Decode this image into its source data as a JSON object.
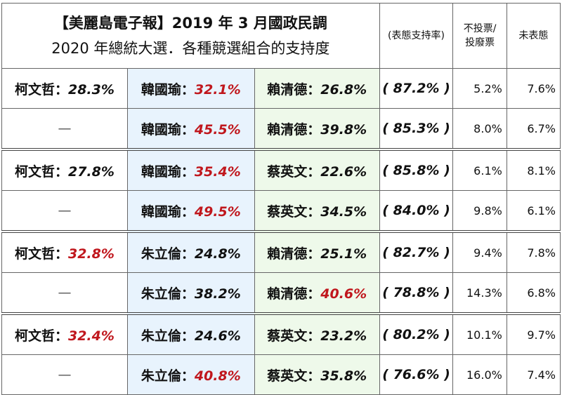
{
  "header": {
    "title_line1": "【美麗島電子報】2019 年 3 月國政民調",
    "title_line2": "2020 年總統大選．各種競選組合的支持度",
    "col_support": "(表態支持率)",
    "col_novote": "不投票/\n投廢票",
    "col_undecided": "未表態"
  },
  "colors": {
    "highlight": "#c0171d",
    "blue_column": "#e8f3fd",
    "green_column": "#eef9ea"
  },
  "rows": [
    {
      "c1": {
        "name": "柯文哲：",
        "pct": "28.3%",
        "red": false
      },
      "c2": {
        "name": "韓國瑜：",
        "pct": "32.1%",
        "red": true
      },
      "c3": {
        "name": "賴清德：",
        "pct": "26.8%",
        "red": false
      },
      "support": "( 87.2% )",
      "novote": "5.2%",
      "undecided": "7.6%"
    },
    {
      "c1": {
        "name": "—",
        "pct": "",
        "red": false
      },
      "c2": {
        "name": "韓國瑜：",
        "pct": "45.5%",
        "red": true
      },
      "c3": {
        "name": "賴清德：",
        "pct": "39.8%",
        "red": false
      },
      "support": "( 85.3% )",
      "novote": "8.0%",
      "undecided": "6.7%"
    },
    {
      "c1": {
        "name": "柯文哲：",
        "pct": "27.8%",
        "red": false
      },
      "c2": {
        "name": "韓國瑜：",
        "pct": "35.4%",
        "red": true
      },
      "c3": {
        "name": "蔡英文：",
        "pct": "22.6%",
        "red": false
      },
      "support": "( 85.8% )",
      "novote": "6.1%",
      "undecided": "8.1%"
    },
    {
      "c1": {
        "name": "—",
        "pct": "",
        "red": false
      },
      "c2": {
        "name": "韓國瑜：",
        "pct": "49.5%",
        "red": true
      },
      "c3": {
        "name": "蔡英文：",
        "pct": "34.5%",
        "red": false
      },
      "support": "( 84.0% )",
      "novote": "9.8%",
      "undecided": "6.1%"
    },
    {
      "c1": {
        "name": "柯文哲：",
        "pct": "32.8%",
        "red": true
      },
      "c2": {
        "name": "朱立倫：",
        "pct": "24.8%",
        "red": false
      },
      "c3": {
        "name": "賴清德：",
        "pct": "25.1%",
        "red": false
      },
      "support": "( 82.7% )",
      "novote": "9.4%",
      "undecided": "7.8%"
    },
    {
      "c1": {
        "name": "—",
        "pct": "",
        "red": false
      },
      "c2": {
        "name": "朱立倫：",
        "pct": "38.2%",
        "red": false
      },
      "c3": {
        "name": "賴清德：",
        "pct": "40.6%",
        "red": true
      },
      "support": "( 78.8% )",
      "novote": "14.3%",
      "undecided": "6.8%"
    },
    {
      "c1": {
        "name": "柯文哲：",
        "pct": "32.4%",
        "red": true
      },
      "c2": {
        "name": "朱立倫：",
        "pct": "24.6%",
        "red": false
      },
      "c3": {
        "name": "蔡英文：",
        "pct": "23.2%",
        "red": false
      },
      "support": "( 80.2% )",
      "novote": "10.1%",
      "undecided": "9.7%"
    },
    {
      "c1": {
        "name": "—",
        "pct": "",
        "red": false
      },
      "c2": {
        "name": "朱立倫：",
        "pct": "40.8%",
        "red": true
      },
      "c3": {
        "name": "蔡英文：",
        "pct": "35.8%",
        "red": false
      },
      "support": "( 76.6% )",
      "novote": "16.0%",
      "undecided": "7.4%"
    }
  ]
}
